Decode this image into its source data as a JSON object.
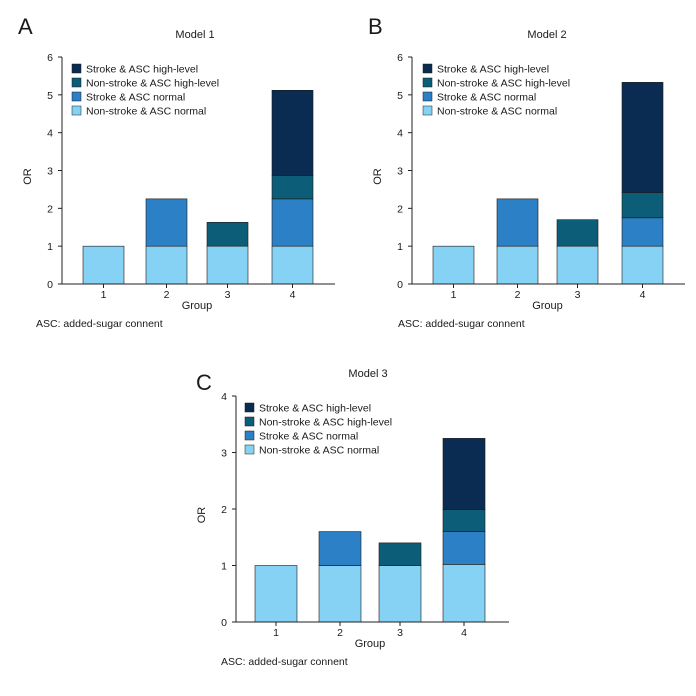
{
  "colors": {
    "stroke_high": "#0b2c52",
    "nonstroke_high": "#0c5d78",
    "stroke_normal": "#2b80c6",
    "nonstroke_normal": "#86d2f4",
    "axis": "#222222",
    "bar_edge": "#1a1a1a"
  },
  "legend": [
    {
      "label": "Stroke & ASC high-level",
      "color_key": "stroke_high"
    },
    {
      "label": "Non-stroke & ASC high-level",
      "color_key": "nonstroke_high"
    },
    {
      "label": "Stroke & ASC normal",
      "color_key": "stroke_normal"
    },
    {
      "label": "Non-stroke & ASC normal",
      "color_key": "nonstroke_normal"
    }
  ],
  "footnote": "ASC: added-sugar connent",
  "chart_data": [
    {
      "panel": "A",
      "type": "bar",
      "stacked": true,
      "title": "Model 1",
      "xlabel": "Group",
      "ylabel": "OR",
      "ylim": [
        0,
        6
      ],
      "yticks": [
        0,
        1,
        2,
        3,
        4,
        5,
        6
      ],
      "categories": [
        "1",
        "2",
        "3",
        "4"
      ],
      "stacks": [
        [
          {
            "key": "nonstroke_normal",
            "from": 0,
            "to": 1
          }
        ],
        [
          {
            "key": "nonstroke_normal",
            "from": 0,
            "to": 1
          },
          {
            "key": "stroke_normal",
            "from": 1,
            "to": 2.25
          }
        ],
        [
          {
            "key": "nonstroke_normal",
            "from": 0,
            "to": 1
          },
          {
            "key": "nonstroke_high",
            "from": 1,
            "to": 1.63
          }
        ],
        [
          {
            "key": "nonstroke_normal",
            "from": 0,
            "to": 1
          },
          {
            "key": "stroke_normal",
            "from": 1,
            "to": 2.25
          },
          {
            "key": "nonstroke_high",
            "from": 2.25,
            "to": 2.87
          },
          {
            "key": "stroke_high",
            "from": 2.87,
            "to": 5.12
          }
        ]
      ]
    },
    {
      "panel": "B",
      "type": "bar",
      "stacked": true,
      "title": "Model 2",
      "xlabel": "Group",
      "ylabel": "OR",
      "ylim": [
        0,
        6
      ],
      "yticks": [
        0,
        1,
        2,
        3,
        4,
        5,
        6
      ],
      "categories": [
        "1",
        "2",
        "3",
        "4"
      ],
      "stacks": [
        [
          {
            "key": "nonstroke_normal",
            "from": 0,
            "to": 1
          }
        ],
        [
          {
            "key": "nonstroke_normal",
            "from": 0,
            "to": 1
          },
          {
            "key": "stroke_normal",
            "from": 1,
            "to": 2.25
          }
        ],
        [
          {
            "key": "nonstroke_normal",
            "from": 0,
            "to": 1
          },
          {
            "key": "nonstroke_high",
            "from": 1,
            "to": 1.7
          }
        ],
        [
          {
            "key": "nonstroke_normal",
            "from": 0,
            "to": 1
          },
          {
            "key": "stroke_normal",
            "from": 1,
            "to": 1.75
          },
          {
            "key": "nonstroke_high",
            "from": 1.75,
            "to": 2.42
          },
          {
            "key": "stroke_high",
            "from": 2.42,
            "to": 5.33
          }
        ]
      ]
    },
    {
      "panel": "C",
      "type": "bar",
      "stacked": true,
      "title": "Model 3",
      "xlabel": "Group",
      "ylabel": "OR",
      "ylim": [
        0,
        4
      ],
      "yticks": [
        0,
        1,
        2,
        3,
        4
      ],
      "categories": [
        "1",
        "2",
        "3",
        "4"
      ],
      "stacks": [
        [
          {
            "key": "nonstroke_normal",
            "from": 0,
            "to": 1
          }
        ],
        [
          {
            "key": "nonstroke_normal",
            "from": 0,
            "to": 1
          },
          {
            "key": "stroke_normal",
            "from": 1,
            "to": 1.6
          }
        ],
        [
          {
            "key": "nonstroke_normal",
            "from": 0,
            "to": 1
          },
          {
            "key": "nonstroke_high",
            "from": 1,
            "to": 1.4
          }
        ],
        [
          {
            "key": "nonstroke_normal",
            "from": 0,
            "to": 1.02
          },
          {
            "key": "stroke_normal",
            "from": 1.02,
            "to": 1.6
          },
          {
            "key": "nonstroke_high",
            "from": 1.6,
            "to": 1.99
          },
          {
            "key": "stroke_high",
            "from": 1.99,
            "to": 3.25
          }
        ]
      ]
    }
  ]
}
